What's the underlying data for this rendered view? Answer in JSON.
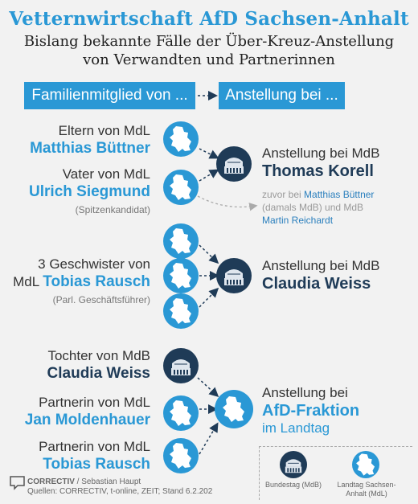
{
  "title": "Vetternwirtschaft AfD Sachsen-Anhalt",
  "subtitle_line1": "Bislang bekannte Fälle der Über-Kreuz-Anstellung",
  "subtitle_line2": "von Verwandten und Partnerinnen",
  "headers": {
    "left": "Familienmitglied von ...",
    "right": "Anstellung bei ..."
  },
  "groups": [
    {
      "relation": "Eltern von MdL",
      "name": "Matthias Büttner"
    },
    {
      "relation": "Vater von MdL",
      "name": "Ulrich Siegmund",
      "note": "(Spitzenkandidat)"
    },
    {
      "relation": "3 Geschwister von",
      "relation_prefix": "MdL",
      "name": "Tobias Rausch",
      "note": "(Parl. Geschäftsführer)"
    },
    {
      "relation": "Tochter von MdB",
      "name": "Claudia Weiss"
    },
    {
      "relation": "Partnerin von MdL",
      "name": "Jan Moldenhauer"
    },
    {
      "relation": "Partnerin von MdL",
      "name": "Tobias Rausch"
    }
  ],
  "employers": [
    {
      "label": "Anstellung bei MdB",
      "name": "Thomas Korell"
    },
    {
      "label": "Anstellung bei MdB",
      "name": "Claudia Weiss"
    },
    {
      "label": "Anstellung bei",
      "name": "AfD-Fraktion",
      "sub": "im Landtag"
    }
  ],
  "note": {
    "p1": "zuvor bei ",
    "h1": "Matthias Büttner",
    "p2": "(damals MdB) und MdB",
    "h2": "Martin Reichardt"
  },
  "legend": {
    "bundestag": "Bundestag (MdB)",
    "landtag_line1": "Landtag Sachsen-",
    "landtag_line2": "Anhalt (MdL)"
  },
  "credit": {
    "brand": "CORRECTIV",
    "author": " / Sebastian Haupt",
    "sources": "Quellen: CORRECTIV, t-online, ZEIT; Stand 6.2.202"
  },
  "colors": {
    "blue": "#2a98d5",
    "navy": "#1f3b57"
  },
  "icons": {
    "state": "sachsen-anhalt-map-icon",
    "building": "bundestag-icon"
  }
}
